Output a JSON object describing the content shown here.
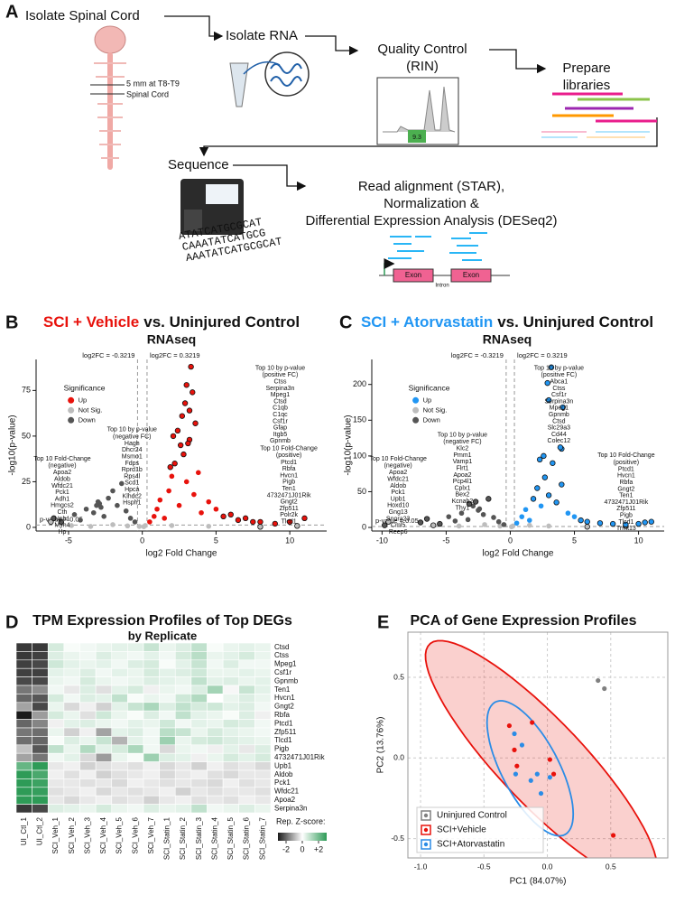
{
  "panel_labels": [
    "A",
    "B",
    "C",
    "D",
    "E"
  ],
  "workflow": {
    "steps": [
      "Isolate Spinal Cord",
      "Isolate RNA",
      [
        "Quality Control",
        "(RIN)"
      ],
      [
        "Prepare",
        "libraries"
      ],
      "Sequence",
      [
        "Read alignment (STAR),",
        "Normalization &",
        "Differential Expression Analysis (DESeq2)"
      ]
    ],
    "cord_note": [
      "5 mm at T8-T9",
      "Spinal Cord"
    ],
    "rin_score": "9.3",
    "reads": [
      "ATATCATGCGCAT",
      "CAAATATCATGCG",
      "AAATATCATGCGCAT"
    ],
    "exon_labels": [
      "Exon",
      "Exon"
    ],
    "intron_label": "Intron"
  },
  "chart_data": [
    {
      "type": "volcano",
      "title_highlight": "SCI + Vehicle",
      "title": "vs. Uninjured Control",
      "title_color": "#e8120c",
      "subtitle": "RNAseq",
      "xlabel": "log2 Fold Change",
      "ylabel": "-log10(p-value)",
      "xlim": [
        -7.2,
        12.5
      ],
      "ylim": [
        -2,
        92
      ],
      "xticks": [
        -5,
        0,
        5,
        10
      ],
      "yticks": [
        0,
        25,
        50,
        75
      ],
      "thresholds": [
        {
          "value": -0.3219,
          "label": "log2FC = -0.3219"
        },
        {
          "value": 0.3219,
          "label": "log2FC = 0.3219"
        }
      ],
      "p_threshold": {
        "value": 0.05,
        "label": "p-value = 0.05"
      },
      "legend_title": "Significance",
      "series": [
        {
          "name": "Up",
          "color": "#e8120c",
          "x": [
            0.5,
            0.8,
            1.0,
            1.2,
            1.5,
            1.8,
            2.0,
            2.2,
            2.5,
            2.8,
            3.0,
            3.2,
            3.5,
            3.8,
            4.0,
            4.5,
            5.0,
            5.5,
            6.0,
            6.5,
            7.0,
            7.5,
            8.0,
            9.0,
            10.0,
            11.0,
            3.3,
            3.0,
            3.4,
            2.9,
            3.2,
            2.7,
            3.6,
            2.4,
            2.1,
            3.1,
            1.9,
            2.6
          ],
          "values": [
            3,
            6,
            10,
            15,
            5,
            20,
            28,
            35,
            12,
            40,
            25,
            48,
            18,
            30,
            8,
            14,
            10,
            6,
            7,
            4,
            5,
            3,
            3,
            2,
            3,
            5,
            88,
            78,
            74,
            68,
            64,
            61,
            57,
            53,
            50,
            46,
            33,
            45
          ]
        },
        {
          "name": "Not Sig.",
          "color": "#bdbdbd",
          "x": [
            -6.2,
            -4.8,
            -3.5,
            -2.0,
            -1.0,
            -0.2,
            0.1,
            0.2,
            2.0,
            4.5,
            8.0,
            10.5
          ],
          "values": [
            3,
            1,
            0.5,
            1.5,
            0.8,
            0.5,
            0.4,
            1.0,
            1.0,
            0.6,
            0.3,
            0.8
          ]
        },
        {
          "name": "Down",
          "color": "#555555",
          "x": [
            -6.0,
            -5.5,
            -4.6,
            -4.2,
            -3.8,
            -3.3,
            -3.0,
            -2.6,
            -2.3,
            -2.0,
            -1.7,
            -1.4,
            -1.1,
            -0.8,
            -0.5,
            -2.9,
            -2.8,
            -3.1
          ],
          "values": [
            5,
            3,
            7,
            4,
            10,
            8,
            14,
            6,
            16,
            20,
            12,
            24,
            9,
            5,
            3,
            13,
            11,
            12
          ]
        }
      ],
      "annotations": [
        {
          "title": [
            "Top 10 by p-value",
            "(positive FC)"
          ],
          "genes": [
            "Ctss",
            "Serpina3n",
            "Mpeg1",
            "Ctsd",
            "C1qb",
            "C1qc",
            "Csf1r",
            "Gfap",
            "Itgb5",
            "Gpnmb"
          ]
        },
        {
          "title": [
            "Top 10 by p-value",
            "(negative FC)"
          ],
          "genes": [
            "Hagh",
            "Dhcr24",
            "Msmo1",
            "Fdps",
            "Rprd1b",
            "Rps4l",
            "Scd1",
            "Hpca",
            "Klhdc2",
            "Hsph1"
          ]
        },
        {
          "title": [
            "Top 10 Fold-Change",
            "(negative)"
          ],
          "genes": [
            "Apoa2",
            "Aldob",
            "Wfdc21",
            "Pck1",
            "Adh1",
            "Hmgcs2",
            "Cth",
            "Upb1",
            "Myh4",
            "Hp"
          ]
        },
        {
          "title": [
            "Top 10 Fold-Change",
            "(positive)"
          ],
          "genes": [
            "Ptcd1",
            "Rbfa",
            "Hvcn1",
            "Pigb",
            "Ten1",
            "4732471J01Rik",
            "Gngt2",
            "Zfp511",
            "Polr2k",
            "Tlcd1"
          ]
        }
      ]
    },
    {
      "type": "volcano",
      "title_highlight": "SCI + Atorvastatin",
      "title": "vs. Uninjured Control",
      "title_color": "#2196f3",
      "subtitle": "RNAseq",
      "xlabel": "log2 Fold Change",
      "ylabel": "-log10(p-value)",
      "xlim": [
        -10.8,
        12
      ],
      "ylim": [
        -5,
        235
      ],
      "xticks": [
        -10,
        -5,
        0,
        5,
        10
      ],
      "yticks": [
        0,
        50,
        100,
        150,
        200
      ],
      "thresholds": [
        {
          "value": -0.3219,
          "label": "log2FC = -0.3219"
        },
        {
          "value": 0.3219,
          "label": "log2FC = 0.3219"
        }
      ],
      "p_threshold": {
        "value": 0.05,
        "label": "p-value = 0.05"
      },
      "legend_title": "Significance",
      "series": [
        {
          "name": "Up",
          "color": "#2196f3",
          "x": [
            0.5,
            0.9,
            1.2,
            1.5,
            1.8,
            2.1,
            2.4,
            2.7,
            3.0,
            3.3,
            3.6,
            4.0,
            4.5,
            5.0,
            5.5,
            6.0,
            7.0,
            8.0,
            9.0,
            10.0,
            10.5,
            11.0,
            3.2,
            2.9,
            3.0,
            4.1,
            4.0,
            3.9,
            2.3,
            2.6
          ],
          "values": [
            6,
            15,
            25,
            10,
            40,
            55,
            30,
            70,
            45,
            90,
            35,
            60,
            20,
            15,
            10,
            8,
            6,
            5,
            4,
            5,
            7,
            8,
            224,
            202,
            178,
            168,
            110,
            112,
            95,
            100
          ]
        },
        {
          "name": "Not Sig.",
          "color": "#bdbdbd",
          "x": [
            -9.5,
            -6,
            -4,
            -2,
            -0.8,
            0.1,
            0.2,
            1.5,
            3,
            6,
            9
          ],
          "values": [
            8,
            3,
            2,
            4,
            2,
            1,
            2,
            3,
            2,
            1,
            2
          ]
        },
        {
          "name": "Down",
          "color": "#555555",
          "x": [
            -9.8,
            -7,
            -6.5,
            -5.5,
            -4.8,
            -4.3,
            -3.8,
            -3.3,
            -2.9,
            -2.5,
            -2.1,
            -1.7,
            -1.3,
            -0.9,
            -0.5,
            -3.2,
            -2.7,
            -2.4
          ],
          "values": [
            3,
            7,
            12,
            5,
            15,
            9,
            20,
            11,
            30,
            24,
            18,
            40,
            14,
            8,
            4,
            33,
            36,
            26
          ]
        }
      ],
      "annotations": [
        {
          "title": [
            "Top 10 by p-value",
            "(positive FC)"
          ],
          "genes": [
            "Abca1",
            "Ctss",
            "Csf1r",
            "Serpina3n",
            "Mpeg1",
            "Gpnmb",
            "Ctsd",
            "Slc29a3",
            "Cd44",
            "Colec12"
          ]
        },
        {
          "title": [
            "Top 10 by p-value",
            "(negative FC)"
          ],
          "genes": [
            "Klc2",
            "Pmm1",
            "Vamp1",
            "Flrt1",
            "Apoa2",
            "Pcp4l1",
            "Cplx1",
            "Bex2",
            "Kcnab2",
            "Thy1"
          ]
        },
        {
          "title": [
            "Top 10 Fold-Change",
            "(negative)"
          ],
          "genes": [
            "Apoa2",
            "Wfdc21",
            "Aldob",
            "Pck1",
            "Upb1",
            "Hoxd10",
            "Gng13",
            "Snora23",
            "Cml5",
            "Reep6"
          ]
        },
        {
          "title": [
            "Top 10 Fold-Change",
            "(positive)"
          ],
          "genes": [
            "Ptcd1",
            "Hvcn1",
            "Rbfa",
            "Gngt2",
            "Ten1",
            "4732471J01Rik",
            "Zfp511",
            "Pigb",
            "Tlcd1",
            "Trmt13"
          ]
        }
      ]
    },
    {
      "type": "heatmap",
      "title": "TPM Expression Profiles of Top DEGs",
      "subtitle": "by Replicate",
      "columns": [
        "UI_Ctl_1",
        "UI_Ctl_2",
        "SCI_Veh_1",
        "SCI_Veh_2",
        "SCI_Veh_3",
        "SCI_Veh_4",
        "SCI_Veh_5",
        "SCI_Veh_6",
        "SCI_Veh_7",
        "SCI_Statin_1",
        "SCI_Statin_2",
        "SCI_Statin_3",
        "SCI_Statin_4",
        "SCI_Statin_5",
        "SCI_Statin_6",
        "SCI_Statin_7"
      ],
      "rows": [
        "Ctsd",
        "Ctss",
        "Mpeg1",
        "Csf1r",
        "Gpnmb",
        "Ten1",
        "Hvcn1",
        "Gngt2",
        "Rbfa",
        "Ptcd1",
        "Zfp511",
        "Tlcd1",
        "Pigb",
        "4732471J01Rik",
        "Upb1",
        "Aldob",
        "Pck1",
        "Wfdc21",
        "Apoa2",
        "Serpina3n"
      ],
      "z": [
        [
          -2.6,
          -2.6,
          0.6,
          0.1,
          0.2,
          0.3,
          0.4,
          0.4,
          0.8,
          0.3,
          0.5,
          0.9,
          0.1,
          0.3,
          0.4,
          0.3
        ],
        [
          -2.6,
          -2.5,
          0.5,
          0.3,
          0.2,
          0.5,
          0.3,
          0.2,
          0.4,
          0.2,
          0.6,
          1.0,
          0.3,
          0.4,
          0.6,
          0.3
        ],
        [
          -2.5,
          -2.4,
          0.7,
          0.4,
          0.3,
          0.4,
          0.2,
          0.5,
          0.6,
          0.1,
          0.4,
          0.8,
          0.2,
          0.5,
          0.2,
          0.2
        ],
        [
          -2.5,
          -2.5,
          0.4,
          0.3,
          0.5,
          0.2,
          0.4,
          0.3,
          0.6,
          0.4,
          0.5,
          0.7,
          0.3,
          0.3,
          0.4,
          0.3
        ],
        [
          -2.4,
          -2.4,
          0.3,
          0.2,
          0.6,
          0.3,
          0.2,
          0.3,
          0.5,
          0.4,
          0.3,
          0.9,
          0.4,
          0.5,
          0.3,
          0.4
        ],
        [
          -1.8,
          -1.5,
          0.2,
          -0.3,
          0.5,
          -0.4,
          0.4,
          0.6,
          -0.2,
          0.3,
          0.2,
          0.5,
          1.3,
          -0.1,
          0.8,
          0.4
        ],
        [
          -2.0,
          -2.2,
          0.6,
          0.2,
          0.5,
          0.4,
          0.9,
          0.1,
          0.3,
          0.2,
          0.7,
          1.1,
          0.0,
          0.3,
          0.5,
          0.3
        ],
        [
          -1.2,
          -2.4,
          0.3,
          -0.5,
          -0.2,
          -0.6,
          0.4,
          0.8,
          1.2,
          0.5,
          0.9,
          0.6,
          0.7,
          0.4,
          0.5,
          0.2
        ],
        [
          -3.0,
          -1.3,
          0.6,
          0.3,
          -0.4,
          0.7,
          0.3,
          0.1,
          0.5,
          0.2,
          0.9,
          0.4,
          0.3,
          0.1,
          0.5,
          -0.2
        ],
        [
          -2.0,
          -1.6,
          -0.2,
          0.4,
          0.5,
          0.3,
          0.2,
          0.4,
          0.3,
          0.7,
          0.2,
          0.4,
          0.3,
          0.6,
          0.5,
          0.2
        ],
        [
          -1.8,
          -1.9,
          0.3,
          -0.6,
          -0.2,
          -1.2,
          0.4,
          0.5,
          0.2,
          1.0,
          0.8,
          0.3,
          0.6,
          0.4,
          0.3,
          0.2
        ],
        [
          -1.9,
          -2.0,
          0.1,
          0.5,
          0.3,
          0.8,
          -1.0,
          0.4,
          0.2,
          1.4,
          0.3,
          0.6,
          0.7,
          0.5,
          0.4,
          0.3
        ],
        [
          -0.8,
          -2.2,
          0.9,
          0.3,
          1.1,
          0.4,
          0.6,
          1.2,
          0.2,
          -0.5,
          0.3,
          0.2,
          -0.2,
          0.4,
          -0.3,
          0.5
        ],
        [
          -1.2,
          -1.8,
          0.2,
          0.4,
          -0.5,
          -1.3,
          0.3,
          0.1,
          1.4,
          0.5,
          0.4,
          -0.2,
          0.3,
          0.6,
          0.4,
          0.6
        ],
        [
          2.2,
          3.0,
          -0.3,
          -0.2,
          -0.6,
          -0.4,
          -0.3,
          -0.4,
          -0.2,
          -0.5,
          -0.3,
          -0.6,
          -0.2,
          -0.4,
          -0.3,
          -0.5
        ],
        [
          3.1,
          2.6,
          -0.2,
          -0.4,
          -0.2,
          -0.6,
          -0.4,
          -0.3,
          -0.2,
          -0.5,
          -0.3,
          -0.2,
          -0.4,
          -0.5,
          -0.3,
          -0.3
        ],
        [
          3.0,
          2.8,
          -0.3,
          -0.3,
          -0.4,
          -0.3,
          -0.5,
          -0.2,
          -0.3,
          -0.4,
          -0.3,
          -0.4,
          -0.5,
          -0.2,
          -0.4,
          -0.3
        ],
        [
          3.2,
          2.9,
          -0.4,
          -0.3,
          -0.2,
          -0.5,
          -0.3,
          -0.4,
          -0.3,
          -0.2,
          -0.6,
          -0.3,
          -0.4,
          -0.3,
          -0.3,
          -0.4
        ],
        [
          3.1,
          3.0,
          -0.3,
          -0.5,
          -0.3,
          -0.2,
          -0.4,
          -0.3,
          -0.6,
          -0.3,
          -0.2,
          -0.4,
          -0.3,
          -0.4,
          -0.2,
          -0.3
        ],
        [
          -2.6,
          -2.4,
          0.5,
          0.4,
          0.3,
          0.6,
          0.3,
          0.2,
          0.5,
          0.3,
          0.4,
          0.9,
          0.2,
          0.3,
          0.5,
          0.3
        ]
      ],
      "zlim": [
        -3,
        3
      ],
      "colors": {
        "low": "#1a1a1a",
        "mid": "#ffffff",
        "high": "#2e9b57"
      },
      "colorbar_title": "Rep. Z-score:",
      "colorbar_ticks": [
        -2,
        0,
        {
          "value": 2,
          "label": "+2"
        }
      ]
    },
    {
      "type": "scatter",
      "title": "PCA of Gene Expression Profiles",
      "xlabel": "PC1 (84.07%)",
      "ylabel": "PC2 (13.76%)",
      "xlim": [
        -1.1,
        0.95
      ],
      "ylim": [
        -0.62,
        0.78
      ],
      "xticks": [
        {
          "value": -1.0,
          "label": "-1.0"
        },
        -0.5,
        {
          "value": 0.0,
          "label": "0.0"
        },
        0.5
      ],
      "yticks": [
        -0.5,
        {
          "value": 0.0,
          "label": "0.0"
        },
        0.5
      ],
      "grid": true,
      "legend": "bottom-left",
      "series": [
        {
          "name": "Uninjured Control",
          "color": "#808080",
          "x": [
            0.4,
            0.45
          ],
          "values": [
            0.48,
            0.43
          ]
        },
        {
          "name": "SCI+Vehicle",
          "color": "#e8120c",
          "ellipse": "filled",
          "x": [
            -0.3,
            -0.12,
            -0.26,
            0.02,
            -0.24,
            0.05,
            0.52
          ],
          "values": [
            0.2,
            0.22,
            0.05,
            -0.01,
            -0.05,
            -0.1,
            -0.48
          ]
        },
        {
          "name": "SCI+Atorvastatin",
          "color": "#2b8ce6",
          "ellipse": "outline",
          "x": [
            -0.26,
            -0.2,
            -0.25,
            -0.08,
            0.02,
            -0.13,
            -0.05
          ],
          "values": [
            0.15,
            0.08,
            -0.1,
            -0.1,
            -0.12,
            -0.14,
            -0.22
          ]
        }
      ]
    }
  ]
}
